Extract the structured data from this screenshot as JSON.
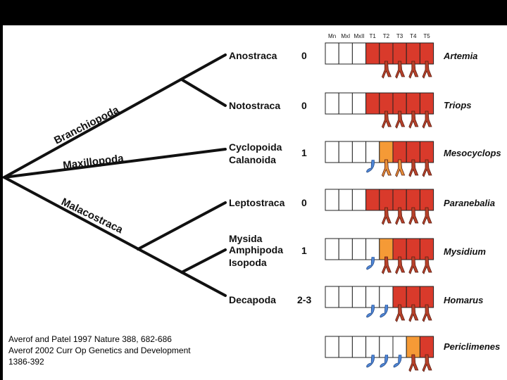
{
  "segment_headers": [
    "Mn",
    "MxI",
    "MxII",
    "T1",
    "T2",
    "T3",
    "T4",
    "T5"
  ],
  "branch_labels": {
    "branchiopoda": "Branchiopoda",
    "maxillopoda": "Maxillopoda",
    "malacostraca": "Malacostraca"
  },
  "taxa": [
    {
      "lines": [
        "Anostraca"
      ],
      "count": "0"
    },
    {
      "lines": [
        "Notostraca"
      ],
      "count": "0"
    },
    {
      "lines": [
        "Cyclopoida",
        "Calanoida"
      ],
      "count": "1"
    },
    {
      "lines": [
        "Leptostraca"
      ],
      "count": "0"
    },
    {
      "lines": [
        "Mysida",
        "Amphipoda",
        "Isopoda"
      ],
      "count": "1"
    },
    {
      "lines": [
        "Decapoda"
      ],
      "count": "2-3"
    }
  ],
  "genera": [
    {
      "name": "Artemia",
      "segments": [
        "w",
        "w",
        "w",
        "r",
        "r",
        "r",
        "r",
        "r"
      ],
      "appendages": [
        "-",
        "-",
        "-",
        "-",
        "r",
        "r",
        "r",
        "r"
      ]
    },
    {
      "name": "Triops",
      "segments": [
        "w",
        "w",
        "w",
        "r",
        "r",
        "r",
        "r",
        "r"
      ],
      "appendages": [
        "-",
        "-",
        "-",
        "-",
        "r",
        "r",
        "r",
        "r"
      ]
    },
    {
      "name": "Mesocyclops",
      "segments": [
        "w",
        "w",
        "w",
        "w",
        "o",
        "r",
        "r",
        "r"
      ],
      "appendages": [
        "-",
        "-",
        "-",
        "b",
        "o",
        "o",
        "r",
        "r"
      ]
    },
    {
      "name": "Paranebalia",
      "segments": [
        "w",
        "w",
        "w",
        "r",
        "r",
        "r",
        "r",
        "r"
      ],
      "appendages": [
        "-",
        "-",
        "-",
        "-",
        "r",
        "r",
        "r",
        "r"
      ]
    },
    {
      "name": "Mysidium",
      "segments": [
        "w",
        "w",
        "w",
        "w",
        "o",
        "r",
        "r",
        "r"
      ],
      "appendages": [
        "-",
        "-",
        "-",
        "b",
        "r",
        "r",
        "r",
        "r"
      ]
    },
    {
      "name": "Homarus",
      "segments": [
        "w",
        "w",
        "w",
        "w",
        "w",
        "r",
        "r",
        "r"
      ],
      "appendages": [
        "-",
        "-",
        "-",
        "b",
        "b",
        "r",
        "r",
        "r"
      ]
    },
    {
      "name": "Periclimenes",
      "segments": [
        "w",
        "w",
        "w",
        "w",
        "w",
        "w",
        "o",
        "r"
      ],
      "appendages": [
        "-",
        "-",
        "-",
        "b",
        "b",
        "b",
        "r",
        "r"
      ]
    }
  ],
  "citation": [
    "Averof and Patel 1997 Nature 388, 682-686",
    "Averof 2002 Curr Op Genetics and Development",
    "1386-392"
  ],
  "colors": {
    "red": "#d93a2b",
    "orange": "#f59a36",
    "blue": "#4f86d6",
    "limb_red": "#b8412a",
    "limb_orange": "#e8903a",
    "background": "#ffffff",
    "frame": "#000000"
  }
}
